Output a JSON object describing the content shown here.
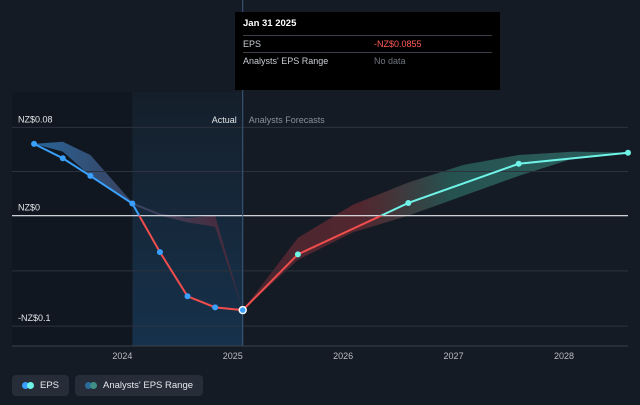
{
  "chart_data": {
    "type": "line",
    "y_tick_labels": [
      "NZ$0.08",
      "NZ$0",
      "-NZ$0.1"
    ],
    "y_ticks": [
      0.08,
      0,
      -0.1
    ],
    "x_tick_labels": [
      "2024",
      "2025",
      "2026",
      "2027",
      "2028"
    ],
    "x_ticks": [
      2024.0,
      2025.0,
      2026.0,
      2027.0,
      2028.0
    ],
    "xlim": [
      2023.0,
      2028.58
    ],
    "ylim": [
      -0.118,
      0.112
    ],
    "actual_label": "Actual",
    "forecast_label": "Analysts Forecasts",
    "actual_end_x": 2025.09,
    "highlight_start_x": 2024.09,
    "grid": true,
    "series": [
      {
        "name": "EPS",
        "color": "#3aa0ff",
        "x": [
          2023.2,
          2023.46,
          2023.71,
          2024.09,
          2024.34,
          2024.59,
          2024.84,
          2025.09
        ],
        "y": [
          0.065,
          0.052,
          0.036,
          0.011,
          -0.033,
          -0.073,
          -0.083,
          -0.0855
        ]
      },
      {
        "name": "EPS forecast",
        "color": "#6ff3e6",
        "x": [
          2025.09,
          2025.59,
          2026.59,
          2027.59,
          2028.58
        ],
        "y": [
          -0.0855,
          -0.035,
          0.0115,
          0.047,
          0.057
        ]
      }
    ],
    "range_band": {
      "x": [
        2023.2,
        2023.46,
        2023.71,
        2024.09,
        2024.34,
        2024.59,
        2024.84,
        2025.09,
        2025.59,
        2026.09,
        2026.59,
        2027.09,
        2027.59,
        2028.09,
        2028.58
      ],
      "low": [
        0.065,
        0.058,
        0.036,
        0.01,
        0.0,
        -0.006,
        -0.01,
        -0.0855,
        -0.04,
        -0.015,
        0.0,
        0.018,
        0.036,
        0.052,
        0.057
      ],
      "high": [
        0.065,
        0.067,
        0.055,
        0.012,
        0.002,
        -0.002,
        0.0,
        -0.0855,
        -0.02,
        0.01,
        0.03,
        0.046,
        0.055,
        0.058,
        0.057
      ]
    }
  },
  "tooltip": {
    "date": "Jan 31 2025",
    "eps_label": "EPS",
    "eps_value": "-NZ$0.0855",
    "range_label": "Analysts' EPS Range",
    "range_value": "No data"
  },
  "legend": {
    "eps_label": "EPS",
    "range_label": "Analysts' EPS Range"
  },
  "colors": {
    "eps_past": "#3aa0ff",
    "eps_forecast": "#6ff3e6",
    "negative": "#f04d4d",
    "highlight": "#163450"
  }
}
